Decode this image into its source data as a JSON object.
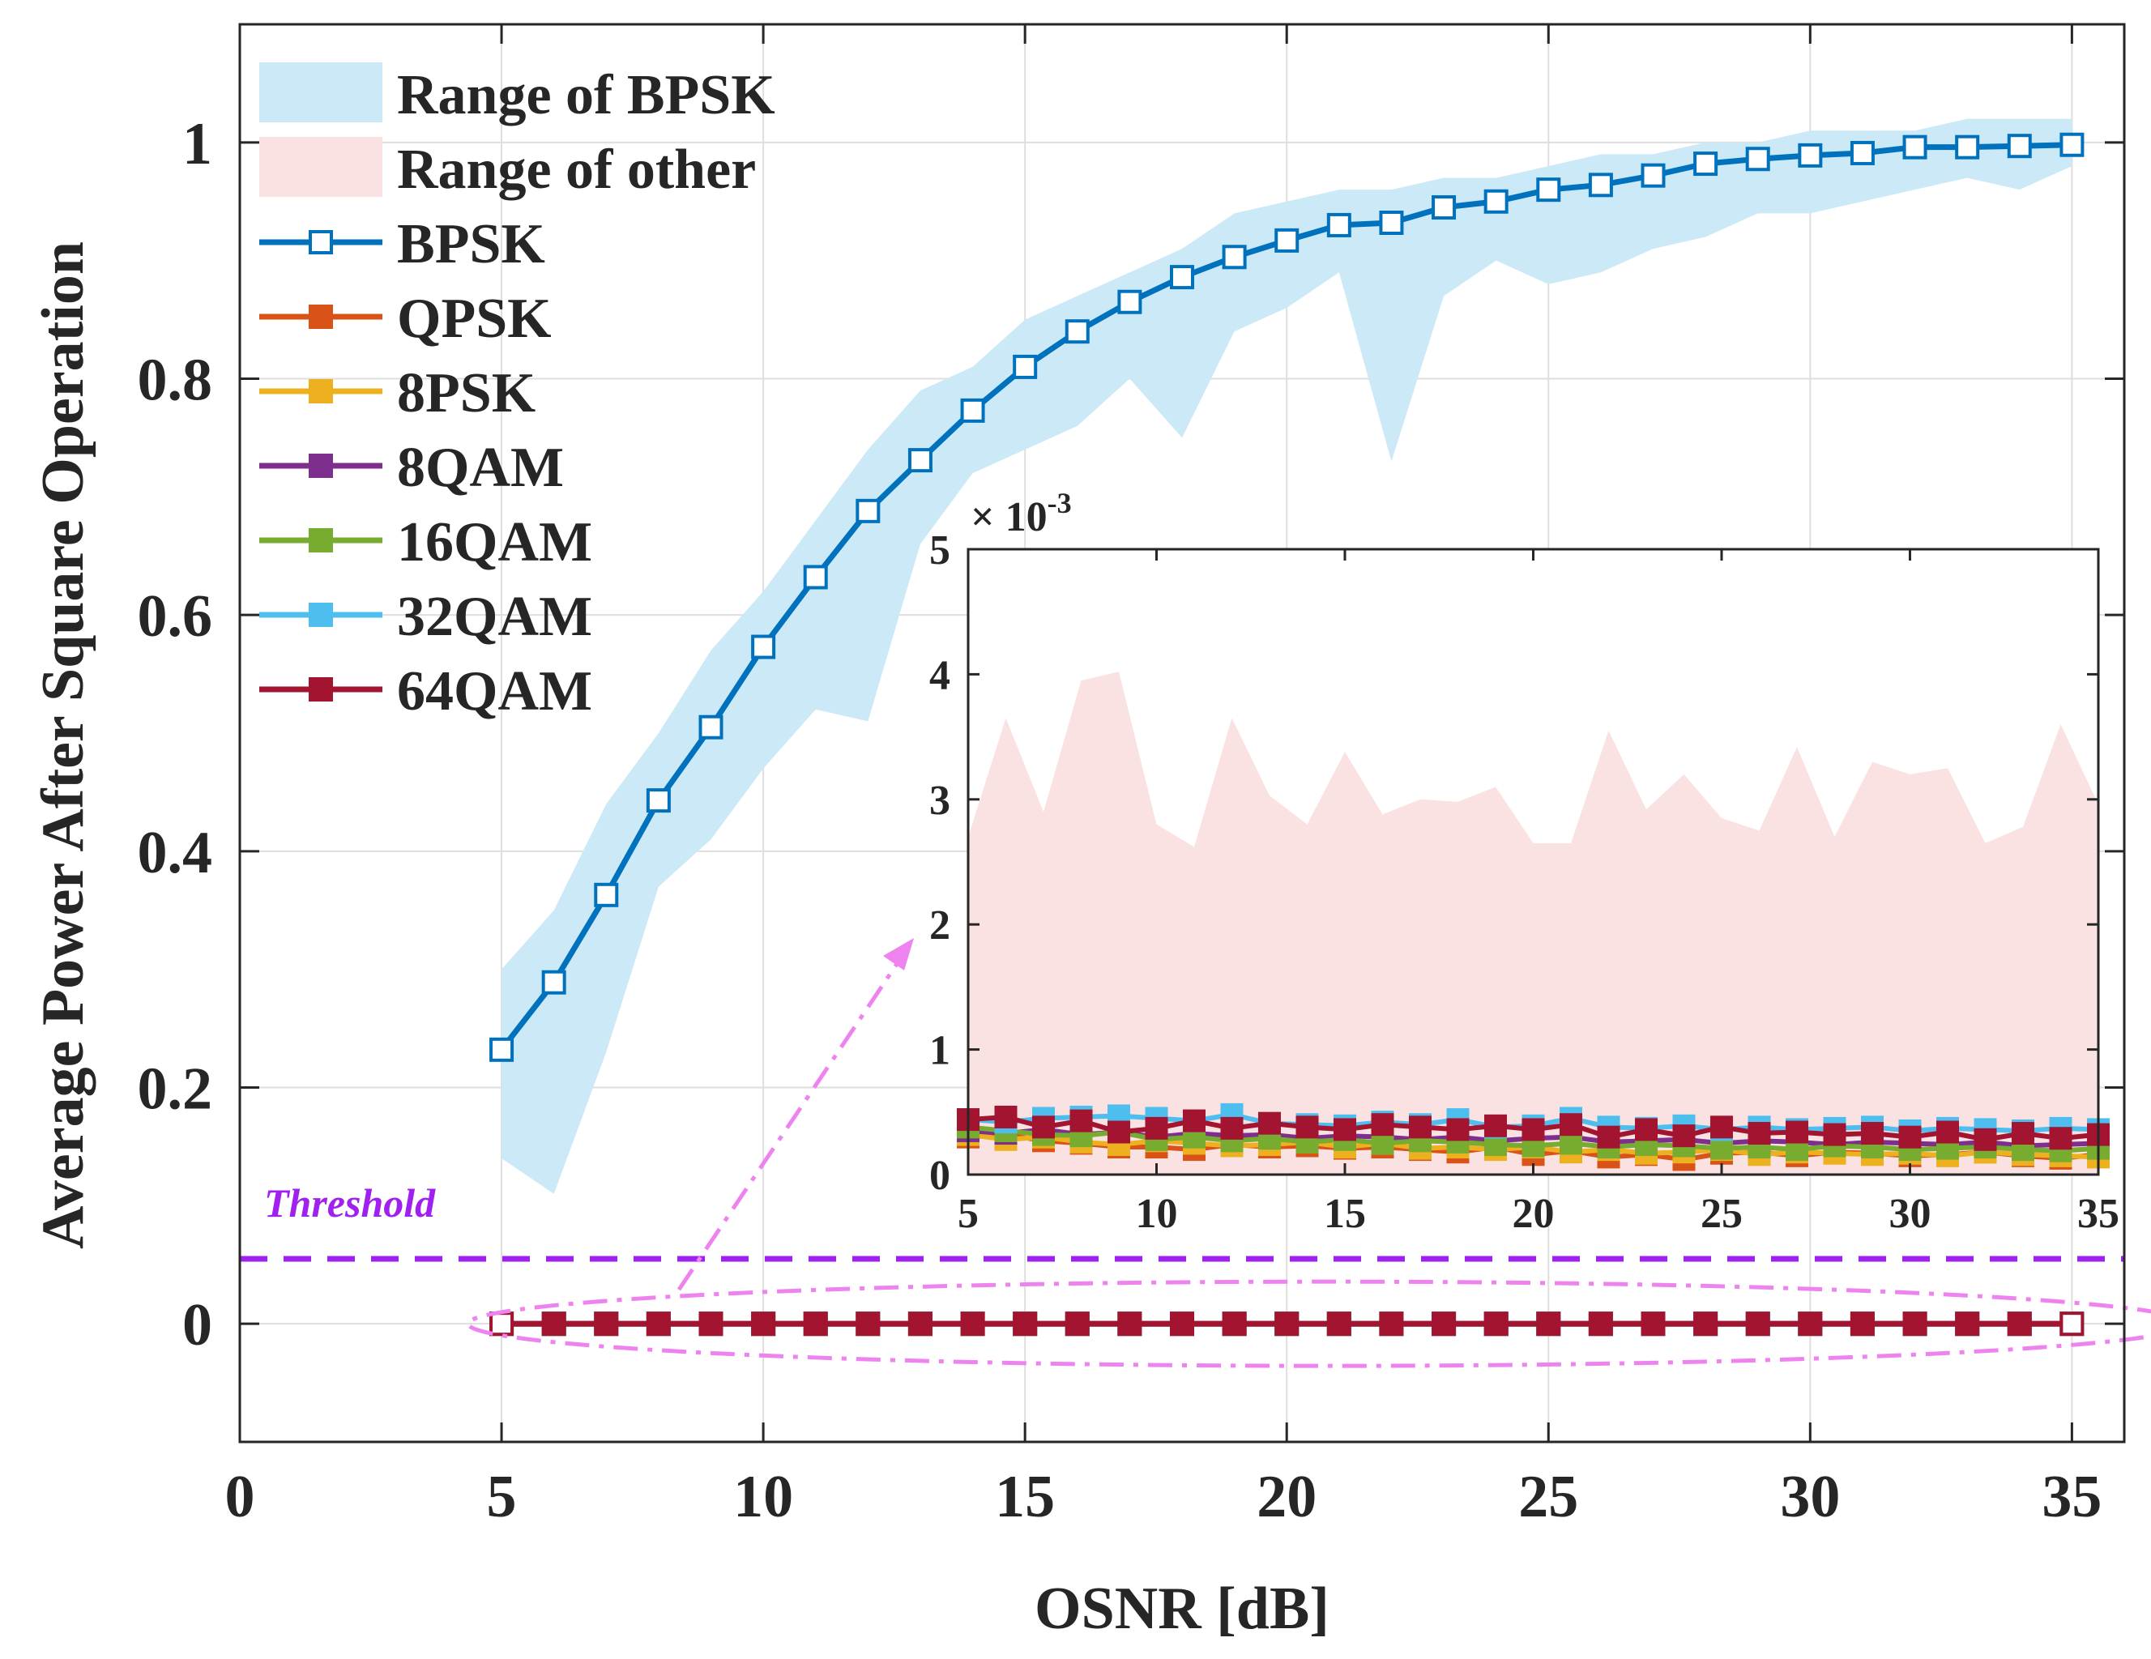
{
  "chart_data": {
    "type": "line",
    "xlabel": "OSNR [dB]",
    "ylabel": "Average Power After Square Operation",
    "xlim": [
      0,
      36
    ],
    "ylim": [
      -0.1,
      1.1
    ],
    "xticks": [
      0,
      5,
      10,
      15,
      20,
      25,
      30,
      35
    ],
    "yticks": [
      0,
      0.2,
      0.4,
      0.6,
      0.8,
      1
    ],
    "ytick_labels": [
      "0",
      "0.2",
      "0.4",
      "0.6",
      "0.8",
      "1"
    ],
    "grid": true,
    "legend_position": "top-left",
    "x": [
      5,
      6,
      7,
      8,
      9,
      10,
      11,
      12,
      13,
      14,
      15,
      16,
      17,
      18,
      19,
      20,
      21,
      22,
      23,
      24,
      25,
      26,
      27,
      28,
      29,
      30,
      31,
      32,
      33,
      34,
      35
    ],
    "range_bpsk": {
      "name": "Range of BPSK",
      "color": "#cce9f8",
      "upper": [
        0.3,
        0.35,
        0.44,
        0.5,
        0.57,
        0.62,
        0.68,
        0.74,
        0.79,
        0.81,
        0.85,
        0.87,
        0.89,
        0.91,
        0.94,
        0.95,
        0.96,
        0.96,
        0.97,
        0.97,
        0.98,
        0.99,
        0.99,
        1.0,
        1.0,
        1.01,
        1.01,
        1.01,
        1.02,
        1.02,
        1.02
      ],
      "lower": [
        0.14,
        0.11,
        0.23,
        0.37,
        0.41,
        0.47,
        0.52,
        0.51,
        0.66,
        0.72,
        0.74,
        0.76,
        0.8,
        0.75,
        0.84,
        0.86,
        0.89,
        0.73,
        0.87,
        0.9,
        0.88,
        0.89,
        0.91,
        0.92,
        0.94,
        0.94,
        0.95,
        0.96,
        0.97,
        0.96,
        0.98
      ]
    },
    "range_other": {
      "name": "Range of other",
      "color": "#fbe2e2"
    },
    "series": [
      {
        "name": "BPSK",
        "color": "#0072bd",
        "values": [
          0.232,
          0.289,
          0.363,
          0.443,
          0.505,
          0.573,
          0.632,
          0.688,
          0.731,
          0.773,
          0.81,
          0.84,
          0.865,
          0.886,
          0.903,
          0.917,
          0.93,
          0.932,
          0.945,
          0.95,
          0.96,
          0.964,
          0.972,
          0.982,
          0.986,
          0.989,
          0.991,
          0.996,
          0.996,
          0.997,
          0.998
        ]
      },
      {
        "name": "QPSK",
        "color": "#d95319",
        "values": [
          0,
          0,
          0,
          0,
          0,
          0,
          0,
          0,
          0,
          0,
          0,
          0,
          0,
          0,
          0,
          0,
          0,
          0,
          0,
          0,
          0,
          0,
          0,
          0,
          0,
          0,
          0,
          0,
          0,
          0,
          0
        ]
      },
      {
        "name": "8PSK",
        "color": "#edb120",
        "values": [
          0,
          0,
          0,
          0,
          0,
          0,
          0,
          0,
          0,
          0,
          0,
          0,
          0,
          0,
          0,
          0,
          0,
          0,
          0,
          0,
          0,
          0,
          0,
          0,
          0,
          0,
          0,
          0,
          0,
          0,
          0
        ]
      },
      {
        "name": "8QAM",
        "color": "#7e2f8e",
        "values": [
          0,
          0,
          0,
          0,
          0,
          0,
          0,
          0,
          0,
          0,
          0,
          0,
          0,
          0,
          0,
          0,
          0,
          0,
          0,
          0,
          0,
          0,
          0,
          0,
          0,
          0,
          0,
          0,
          0,
          0,
          0
        ]
      },
      {
        "name": "16QAM",
        "color": "#77ac30",
        "values": [
          0,
          0,
          0,
          0,
          0,
          0,
          0,
          0,
          0,
          0,
          0,
          0,
          0,
          0,
          0,
          0,
          0,
          0,
          0,
          0,
          0,
          0,
          0,
          0,
          0,
          0,
          0,
          0,
          0,
          0,
          0
        ]
      },
      {
        "name": "32QAM",
        "color": "#4dbeee",
        "values": [
          0,
          0,
          0,
          0,
          0,
          0,
          0,
          0,
          0,
          0,
          0,
          0,
          0,
          0,
          0,
          0,
          0,
          0,
          0,
          0,
          0,
          0,
          0,
          0,
          0,
          0,
          0,
          0,
          0,
          0,
          0
        ]
      },
      {
        "name": "64QAM",
        "color": "#a2142f",
        "values": [
          0,
          0,
          0,
          0,
          0,
          0,
          0,
          0,
          0,
          0,
          0,
          0,
          0,
          0,
          0,
          0,
          0,
          0,
          0,
          0,
          0,
          0,
          0,
          0,
          0,
          0,
          0,
          0,
          0,
          0,
          0
        ]
      }
    ],
    "threshold": {
      "label": "Threshold",
      "value": 0.055,
      "color": "#a020f0"
    },
    "highlight_color": "#ee82ee",
    "inset": {
      "scale_label": "× 10",
      "scale_exponent": "-3",
      "xlim": [
        5,
        35
      ],
      "ylim": [
        0,
        5
      ],
      "xticks": [
        5,
        10,
        15,
        20,
        25,
        30,
        35
      ],
      "yticks": [
        0,
        1,
        2,
        3,
        4,
        5
      ],
      "range_other_upper": [
        2.7,
        3.65,
        2.9,
        3.95,
        4.02,
        2.8,
        2.62,
        3.65,
        3.03,
        2.8,
        3.38,
        2.88,
        3.0,
        2.98,
        3.1,
        2.65,
        2.65,
        3.55,
        2.92,
        3.2,
        2.85,
        2.75,
        3.42,
        2.7,
        3.3,
        3.2,
        3.25,
        2.65,
        2.78,
        3.6,
        2.96
      ],
      "range_other_lower": [
        0,
        0,
        0,
        0,
        0,
        0,
        0,
        0,
        0,
        0,
        0,
        0,
        0,
        0,
        0,
        0,
        0,
        0,
        0,
        0,
        0,
        0,
        0,
        0,
        0,
        0,
        0,
        0,
        0,
        0,
        0
      ],
      "series": [
        {
          "name": "QPSK",
          "values": [
            0.3,
            0.32,
            0.27,
            0.25,
            0.22,
            0.22,
            0.2,
            0.24,
            0.22,
            0.23,
            0.21,
            0.22,
            0.2,
            0.18,
            0.22,
            0.16,
            0.19,
            0.14,
            0.16,
            0.12,
            0.17,
            0.18,
            0.15,
            0.18,
            0.17,
            0.15,
            0.16,
            0.18,
            0.15,
            0.13,
            0.16
          ]
        },
        {
          "name": "8PSK",
          "values": [
            0.32,
            0.28,
            0.3,
            0.26,
            0.24,
            0.27,
            0.25,
            0.23,
            0.24,
            0.26,
            0.22,
            0.25,
            0.21,
            0.22,
            0.2,
            0.22,
            0.18,
            0.2,
            0.17,
            0.18,
            0.2,
            0.16,
            0.18,
            0.17,
            0.16,
            0.17,
            0.15,
            0.18,
            0.16,
            0.15,
            0.14
          ]
        },
        {
          "name": "8QAM",
          "values": [
            0.35,
            0.33,
            0.36,
            0.32,
            0.34,
            0.3,
            0.33,
            0.31,
            0.32,
            0.29,
            0.31,
            0.3,
            0.28,
            0.3,
            0.27,
            0.29,
            0.3,
            0.26,
            0.27,
            0.28,
            0.25,
            0.27,
            0.26,
            0.24,
            0.26,
            0.25,
            0.24,
            0.26,
            0.23,
            0.24,
            0.25
          ]
        },
        {
          "name": "16QAM",
          "values": [
            0.38,
            0.35,
            0.32,
            0.31,
            0.34,
            0.28,
            0.3,
            0.27,
            0.29,
            0.26,
            0.28,
            0.25,
            0.27,
            0.26,
            0.24,
            0.23,
            0.25,
            0.22,
            0.24,
            0.23,
            0.21,
            0.22,
            0.2,
            0.23,
            0.22,
            0.2,
            0.21,
            0.22,
            0.2,
            0.19,
            0.21
          ]
        },
        {
          "name": "32QAM",
          "values": [
            0.44,
            0.42,
            0.45,
            0.46,
            0.47,
            0.45,
            0.43,
            0.48,
            0.41,
            0.4,
            0.39,
            0.42,
            0.4,
            0.44,
            0.38,
            0.39,
            0.45,
            0.38,
            0.37,
            0.39,
            0.36,
            0.38,
            0.36,
            0.37,
            0.38,
            0.35,
            0.37,
            0.36,
            0.35,
            0.37,
            0.36
          ]
        },
        {
          "name": "64QAM",
          "values": [
            0.44,
            0.46,
            0.38,
            0.43,
            0.34,
            0.37,
            0.43,
            0.37,
            0.41,
            0.38,
            0.36,
            0.4,
            0.38,
            0.36,
            0.39,
            0.36,
            0.4,
            0.3,
            0.36,
            0.31,
            0.38,
            0.33,
            0.34,
            0.32,
            0.33,
            0.3,
            0.34,
            0.28,
            0.33,
            0.29,
            0.32
          ]
        }
      ]
    }
  }
}
